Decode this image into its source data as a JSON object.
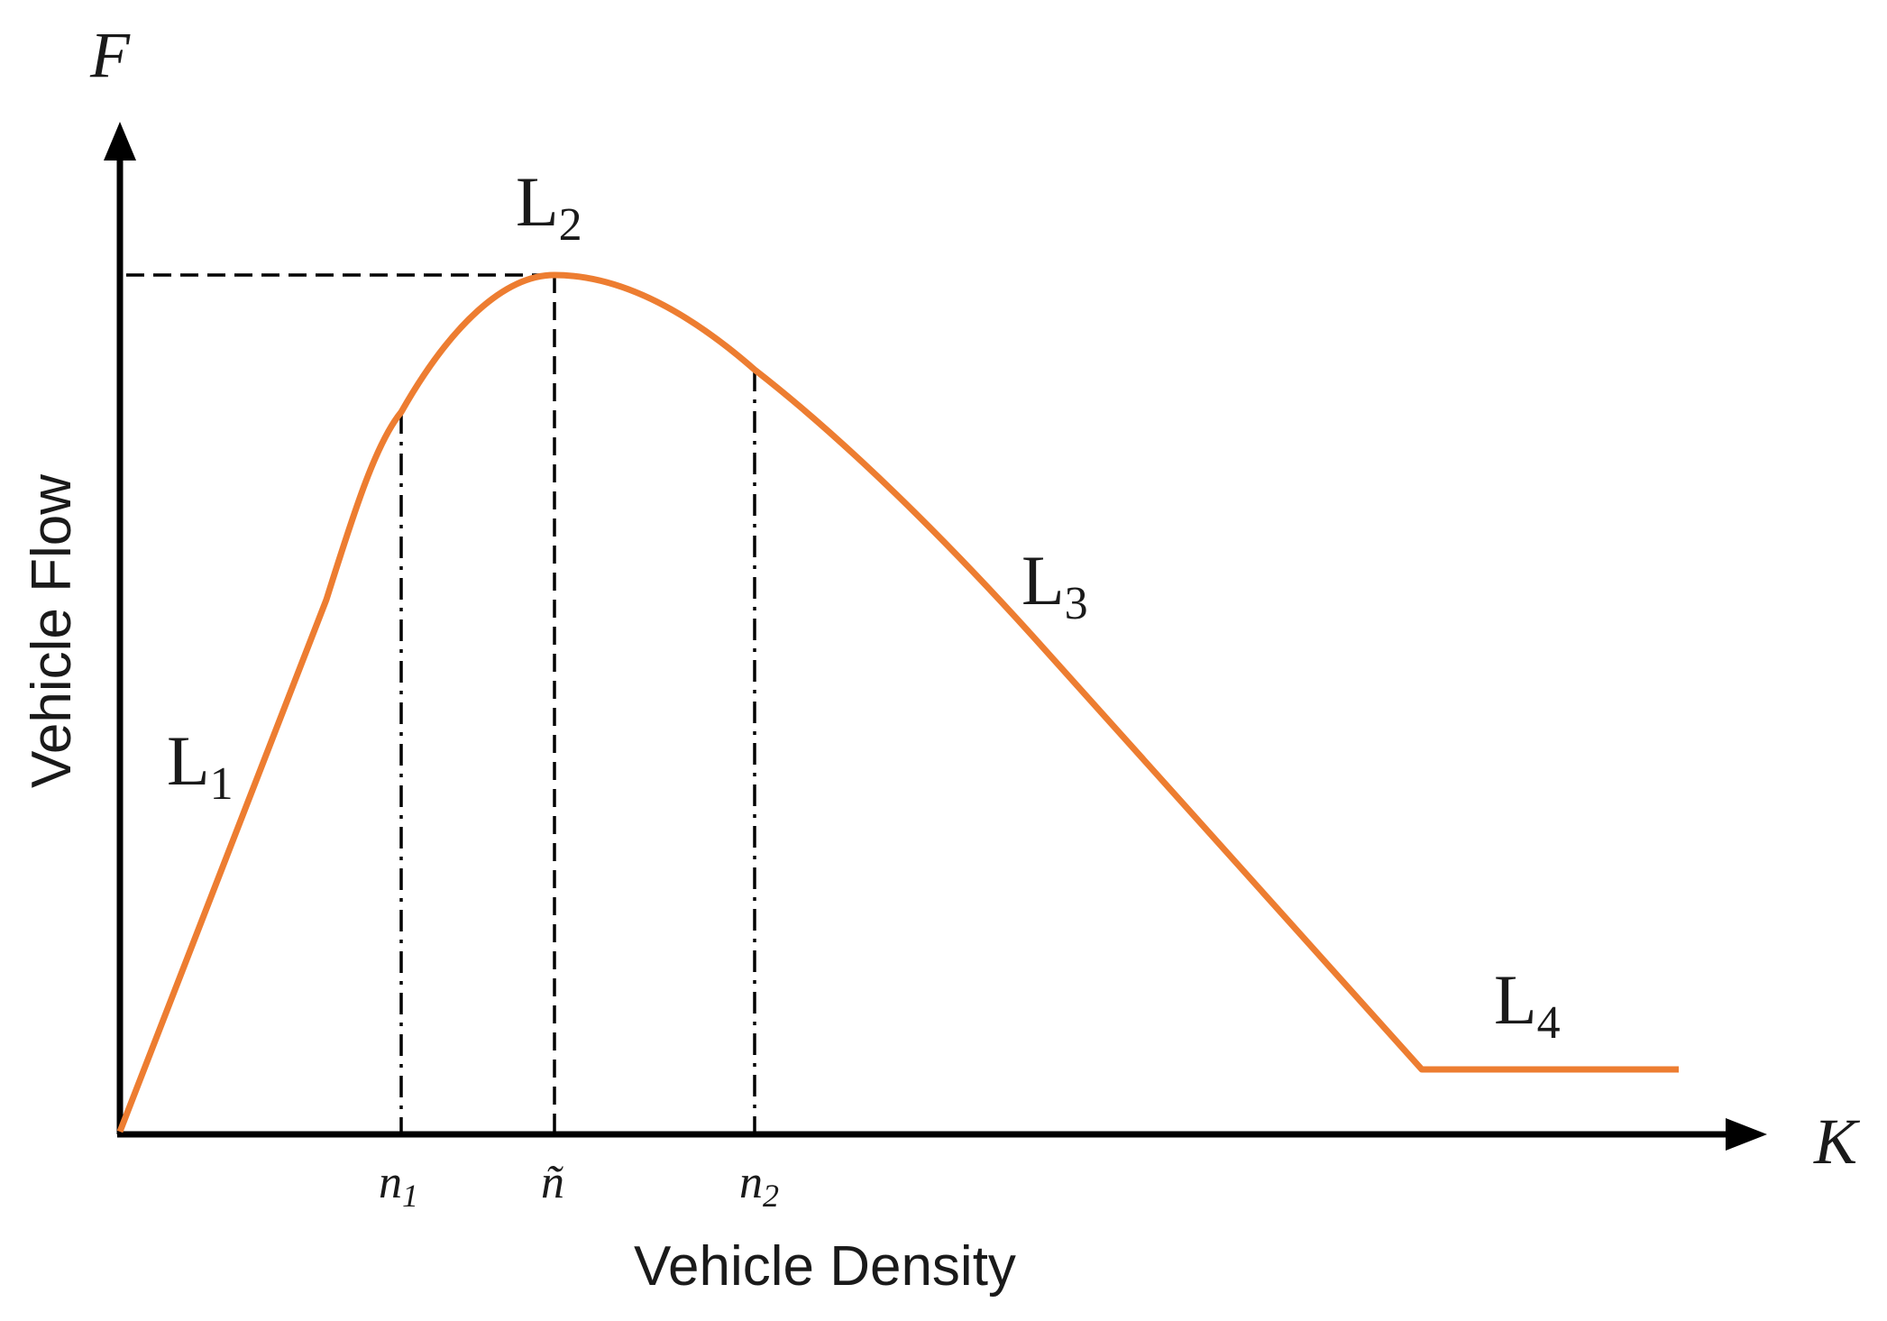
{
  "axes": {
    "y_symbol": "F",
    "x_symbol": "K",
    "y_label": "Vehicle Flow",
    "x_label": "Vehicle Density"
  },
  "ticks": [
    {
      "id": "n1",
      "base": "n",
      "sub": "1"
    },
    {
      "id": "ntilde",
      "base": "ñ",
      "sub": ""
    },
    {
      "id": "n2",
      "base": "n",
      "sub": "2"
    }
  ],
  "segments": [
    {
      "id": "L1",
      "base": "L",
      "sub": "1"
    },
    {
      "id": "L2",
      "base": "L",
      "sub": "2"
    },
    {
      "id": "L3",
      "base": "L",
      "sub": "3"
    },
    {
      "id": "L4",
      "base": "L",
      "sub": "4"
    }
  ],
  "colors": {
    "curve": "#ED7D31",
    "axis": "#000000",
    "text": "#1a1a1a"
  }
}
